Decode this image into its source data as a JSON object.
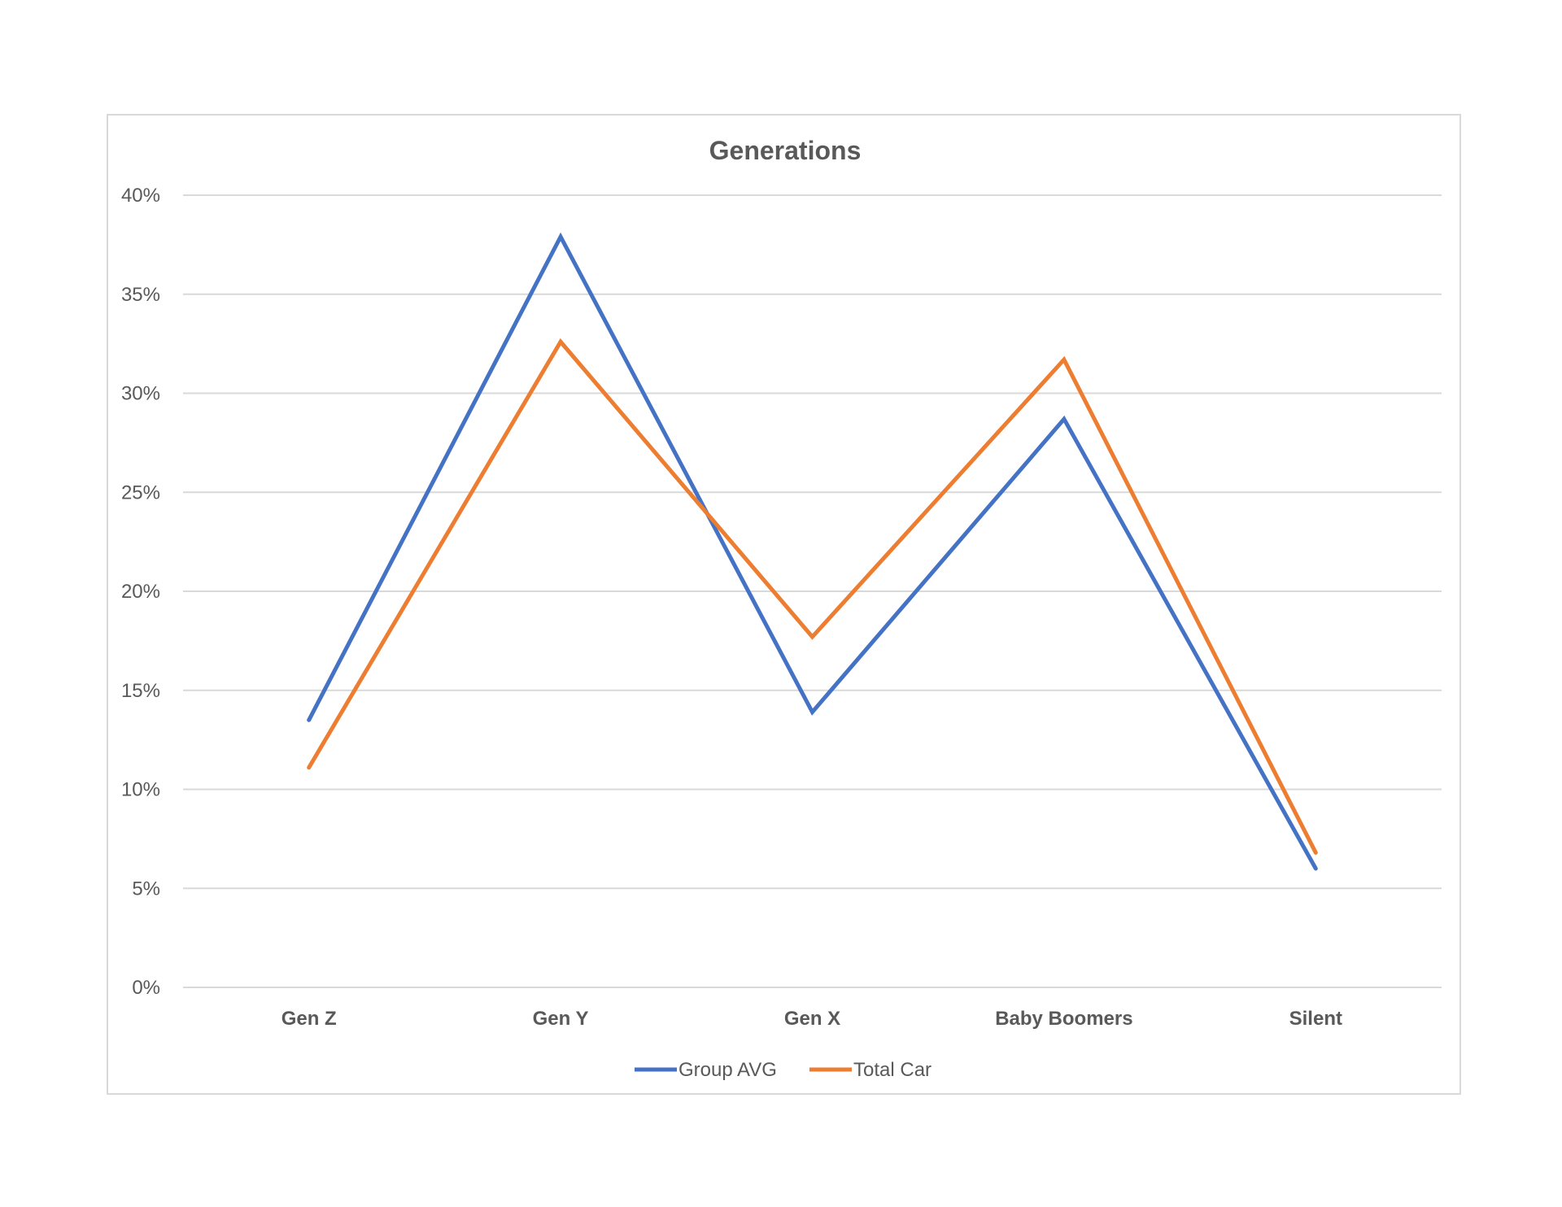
{
  "chart_data": {
    "type": "line",
    "title": "Generations",
    "xlabel": "",
    "ylabel": "",
    "categories": [
      "Gen Z",
      "Gen Y",
      "Gen X",
      "Baby Boomers",
      "Silent"
    ],
    "ylim": [
      0,
      40
    ],
    "yticks": [
      "0%",
      "5%",
      "10%",
      "15%",
      "20%",
      "25%",
      "30%",
      "35%",
      "40%"
    ],
    "grid": true,
    "legend_position": "bottom",
    "series": [
      {
        "name": "Group AVG",
        "color": "#4472c4",
        "values": [
          13.5,
          37.9,
          13.9,
          28.7,
          6.0
        ]
      },
      {
        "name": "Total Car",
        "color": "#ed7d31",
        "values": [
          11.1,
          32.6,
          17.7,
          31.7,
          6.8
        ]
      }
    ]
  }
}
